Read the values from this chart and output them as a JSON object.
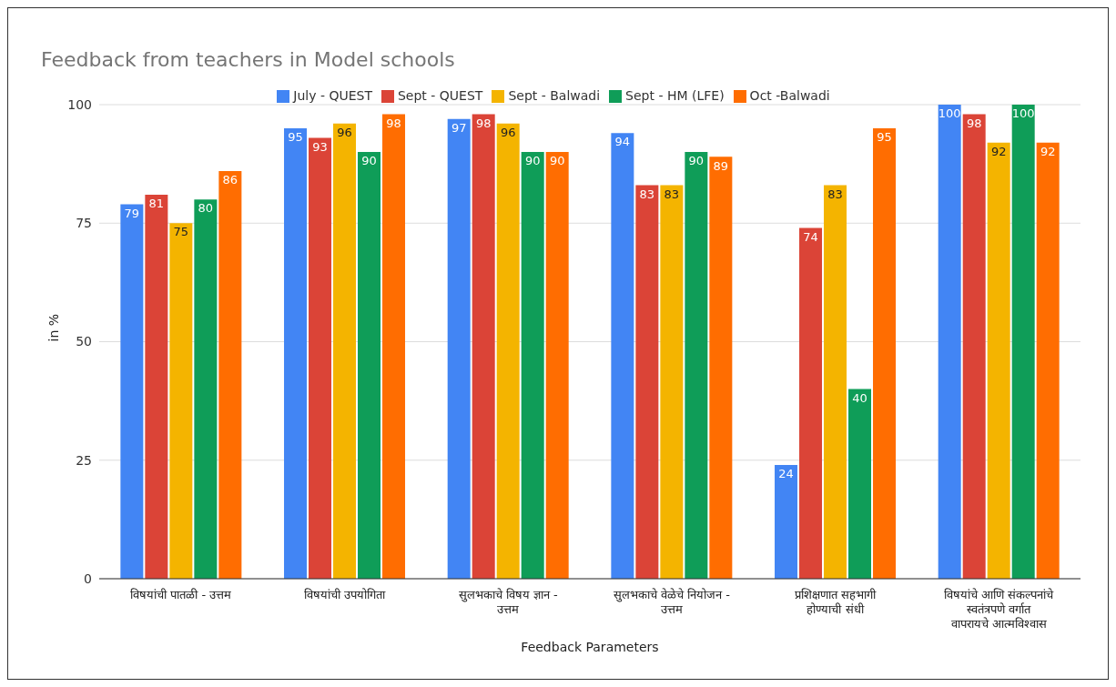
{
  "chart_data": {
    "type": "bar",
    "title": "Feedback from teachers in Model schools",
    "xlabel": "Feedback Parameters",
    "ylabel": "in %",
    "categories": [
      "विषयांची पातळी - उत्तम",
      "विषयांची उपयोगिता",
      "सुलभकाचे विषय ज्ञान - उत्तम",
      "सुलभकाचे वेळेचे नियोजन - उत्तम",
      "प्रशिक्षणात सहभागी होण्याची संधी",
      "विषयांचे आणि संकल्पनांचे स्वतंत्रपणे वर्गात वापरायचे आत्मविश्वास"
    ],
    "series": [
      {
        "name": "July - QUEST",
        "color": "#4285f4",
        "values": [
          79,
          95,
          97,
          94,
          24,
          100
        ]
      },
      {
        "name": "Sept - QUEST",
        "color": "#db4437",
        "values": [
          81,
          93,
          98,
          83,
          74,
          98
        ]
      },
      {
        "name": "Sept - Balwadi",
        "color": "#f4b400",
        "values": [
          75,
          96,
          96,
          83,
          83,
          92
        ]
      },
      {
        "name": "Sept - HM (LFE)",
        "color": "#0f9d58",
        "values": [
          80,
          90,
          90,
          90,
          40,
          100
        ]
      },
      {
        "name": "Oct -Balwadi",
        "color": "#ff6d01",
        "values": [
          86,
          98,
          90,
          89,
          95,
          92
        ]
      }
    ],
    "ylim": [
      0,
      100
    ],
    "yticks": [
      0,
      25,
      50,
      75,
      100
    ],
    "grid": "y",
    "legend": "top",
    "data_labels": true
  }
}
